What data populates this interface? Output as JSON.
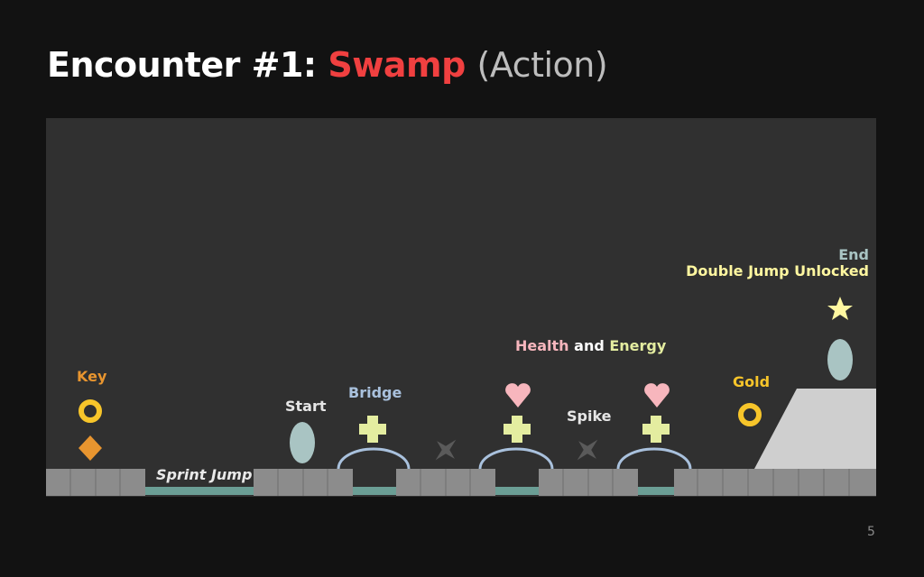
{
  "slide": {
    "title_prefix": "Encounter #1:",
    "title_highlight": "Swamp",
    "title_suffix": "(Action)",
    "page_number": "5"
  },
  "level": {
    "labels": {
      "key": "Key",
      "sprint_jump": "Sprint Jump",
      "start": "Start",
      "bridge": "Bridge",
      "health": "Health",
      "and": "and",
      "energy": "Energy",
      "spike": "Spike",
      "gold": "Gold",
      "end": "End",
      "double_jump": "Double Jump Unlocked"
    },
    "colors": {
      "background": "#121212",
      "panel": "#303030",
      "block": "#8c8c8c",
      "water": "#6b9e95",
      "key": "#e8952f",
      "gold": "#f7c52a",
      "start_end": "#a9c4c3",
      "bridge": "#a9c1dd",
      "health": "#f7b6bd",
      "energy": "#e4eda0",
      "spike": "#5a5a5a",
      "star": "#fff7a0",
      "ramp": "#cfcfcf"
    },
    "icons": [
      "gold-ring-icon",
      "key-diamond-icon",
      "start-portal-icon",
      "bridge-arc-icon",
      "energy-cross-icon",
      "heart-icon",
      "spike-icon",
      "star-icon",
      "end-portal-icon"
    ]
  }
}
